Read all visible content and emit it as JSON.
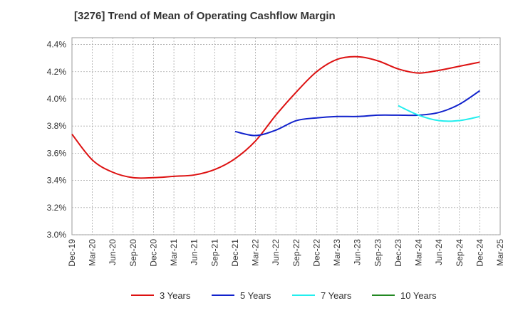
{
  "chart_data": {
    "type": "line",
    "title": "[3276]  Trend of Mean of Operating Cashflow Margin",
    "xlabel": "",
    "ylabel": "",
    "ylim": [
      3.0,
      4.45
    ],
    "y_ticks": [
      "3.0%",
      "3.2%",
      "3.4%",
      "3.6%",
      "3.8%",
      "4.0%",
      "4.2%",
      "4.4%"
    ],
    "y_tick_values": [
      3.0,
      3.2,
      3.4,
      3.6,
      3.8,
      4.0,
      4.2,
      4.4
    ],
    "categories": [
      "Dec-19",
      "Mar-20",
      "Jun-20",
      "Sep-20",
      "Dec-20",
      "Mar-21",
      "Jun-21",
      "Sep-21",
      "Dec-21",
      "Mar-22",
      "Jun-22",
      "Sep-22",
      "Dec-22",
      "Mar-23",
      "Jun-23",
      "Sep-23",
      "Dec-23",
      "Mar-24",
      "Jun-24",
      "Sep-24",
      "Dec-24",
      "Mar-25"
    ],
    "grid": true,
    "legend_position": "bottom",
    "series": [
      {
        "name": "3 Years",
        "color": "#dd1111",
        "values": [
          3.74,
          3.55,
          3.46,
          3.42,
          3.42,
          3.43,
          3.44,
          3.48,
          3.56,
          3.69,
          3.88,
          4.05,
          4.2,
          4.29,
          4.31,
          4.28,
          4.22,
          4.19,
          4.21,
          4.24,
          4.27,
          null
        ]
      },
      {
        "name": "5 Years",
        "color": "#1122cc",
        "values": [
          null,
          null,
          null,
          null,
          null,
          null,
          null,
          null,
          3.76,
          3.73,
          3.77,
          3.84,
          3.86,
          3.87,
          3.87,
          3.88,
          3.88,
          3.88,
          3.9,
          3.96,
          4.06,
          null
        ]
      },
      {
        "name": "7 Years",
        "color": "#22eeee",
        "values": [
          null,
          null,
          null,
          null,
          null,
          null,
          null,
          null,
          null,
          null,
          null,
          null,
          null,
          null,
          null,
          null,
          3.95,
          3.88,
          3.84,
          3.84,
          3.87,
          null
        ]
      },
      {
        "name": "10 Years",
        "color": "#228822",
        "values": [
          null,
          null,
          null,
          null,
          null,
          null,
          null,
          null,
          null,
          null,
          null,
          null,
          null,
          null,
          null,
          null,
          null,
          null,
          null,
          null,
          null,
          null
        ]
      }
    ]
  }
}
